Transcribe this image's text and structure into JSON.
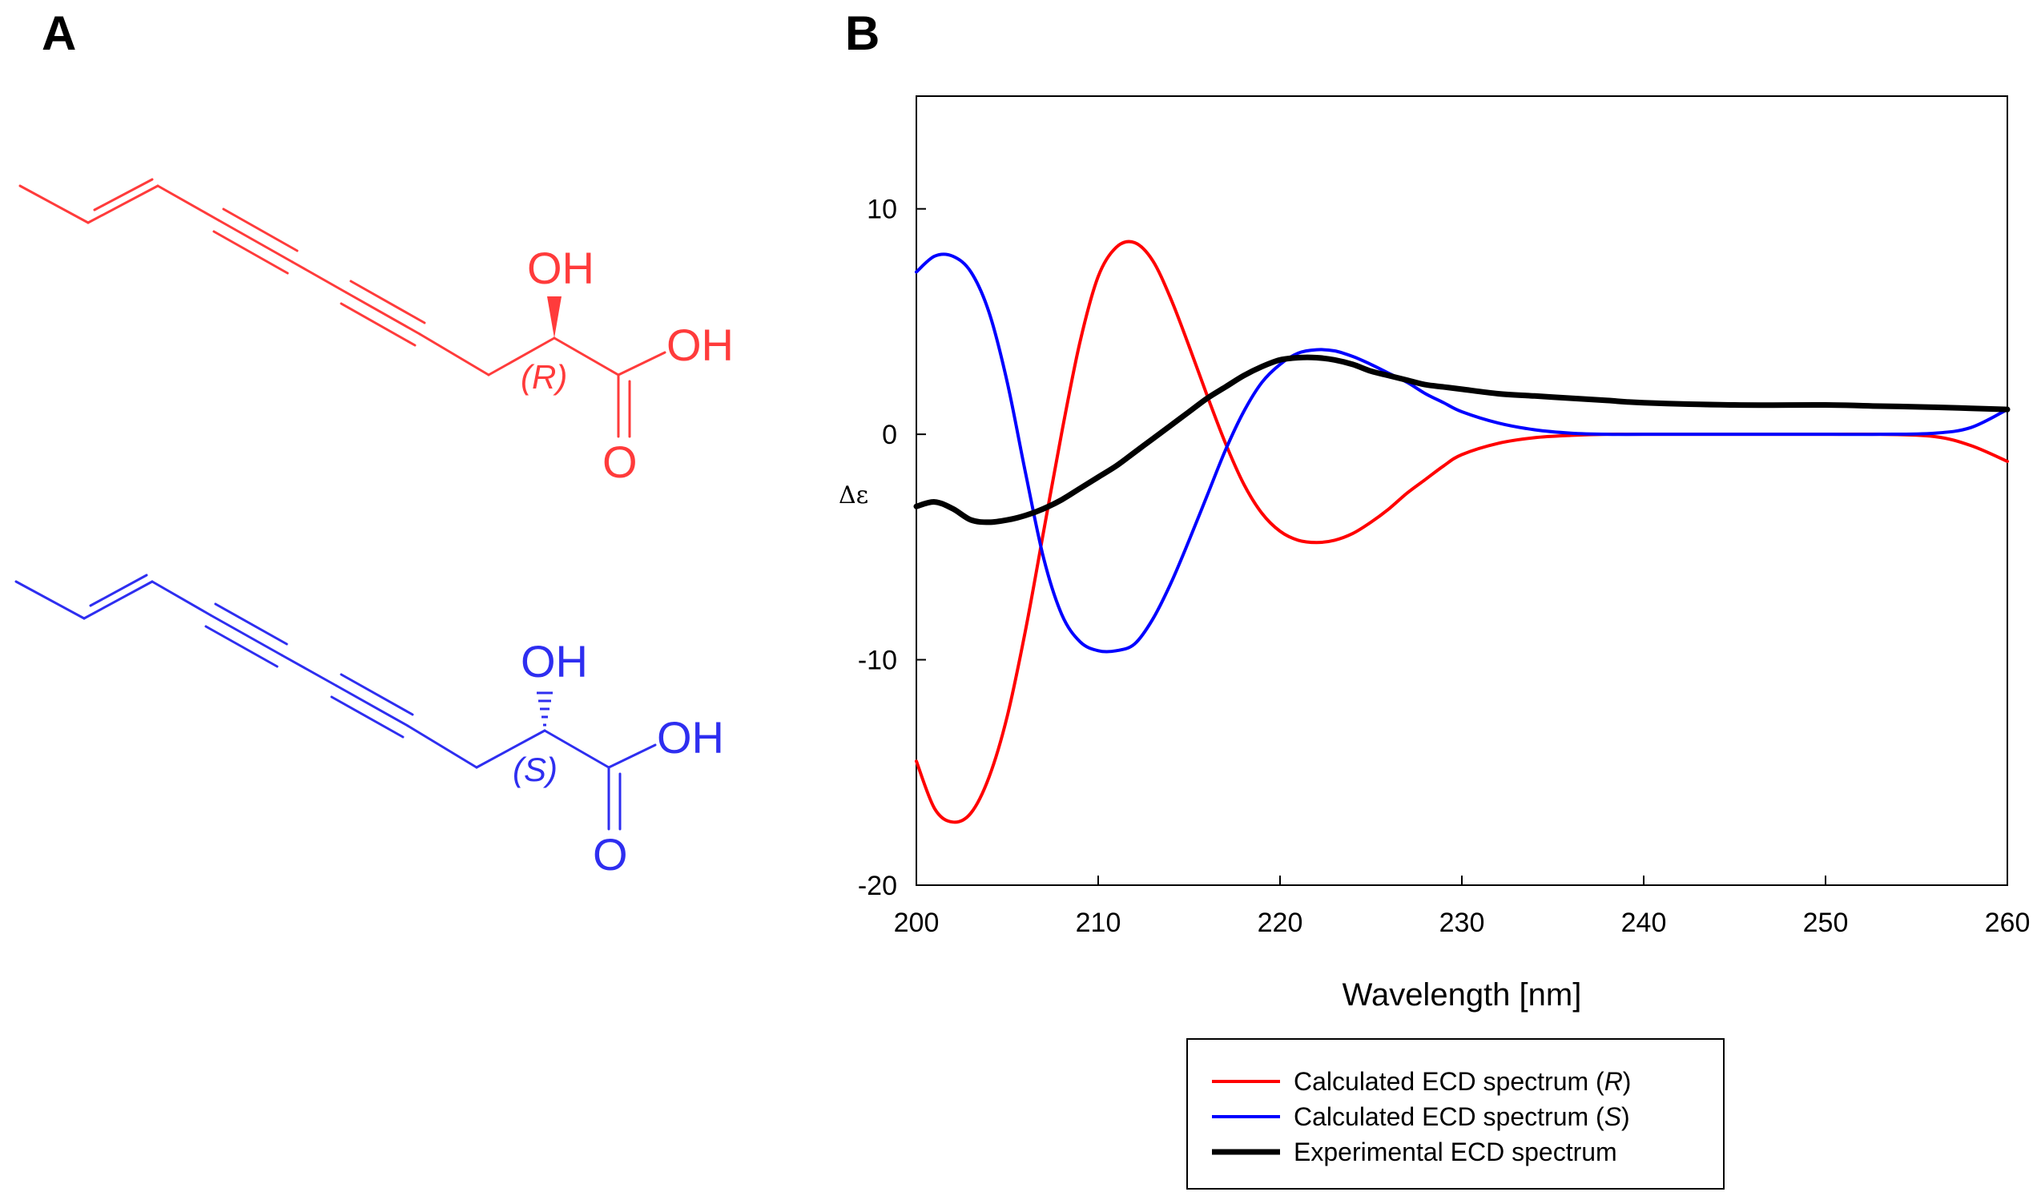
{
  "panels": {
    "a_label": "A",
    "b_label": "B"
  },
  "molecules": {
    "r_isomer": {
      "color": "#ff3b3b",
      "hydroxyl": "OH",
      "acid_oh": "OH",
      "carbonyl_o": "O",
      "stereo_prefix": "(",
      "stereo_letter": "R",
      "stereo_suffix": ")"
    },
    "s_isomer": {
      "color": "#2e2ef0",
      "hydroxyl": "OH",
      "acid_oh": "OH",
      "carbonyl_o": "O",
      "stereo_prefix": "(",
      "stereo_letter": "S",
      "stereo_suffix": ")"
    }
  },
  "chart_data": {
    "type": "line",
    "title": "",
    "xlabel": "Wavelength [nm]",
    "ylabel": "Δε",
    "xlim": [
      200,
      260
    ],
    "ylim": [
      -20,
      15
    ],
    "x_ticks": [
      200,
      210,
      220,
      230,
      240,
      250,
      260
    ],
    "y_ticks": [
      -20,
      -10,
      0,
      10
    ],
    "legend_position": "bottom",
    "series": [
      {
        "name": "Calculated ECD spectrum (R)",
        "label_main": "Calculated ECD spectrum (",
        "label_italic": "R",
        "label_end": ")",
        "color": "#ff0000",
        "width": "normal",
        "x": [
          200,
          201,
          202,
          203,
          204,
          205,
          206,
          207,
          208,
          209,
          210,
          211,
          212,
          213,
          214,
          215,
          216,
          217,
          218,
          219,
          220,
          221,
          222,
          223,
          224,
          225,
          226,
          227,
          228,
          229,
          230,
          232,
          234,
          236,
          238,
          240,
          245,
          250,
          253,
          256,
          258,
          260
        ],
        "y": [
          -14.5,
          -16.6,
          -17.2,
          -16.8,
          -15.2,
          -12.5,
          -8.7,
          -4.3,
          0.1,
          4.1,
          7.0,
          8.3,
          8.5,
          7.7,
          6.0,
          3.9,
          1.7,
          -0.4,
          -2.2,
          -3.5,
          -4.3,
          -4.7,
          -4.8,
          -4.7,
          -4.4,
          -3.9,
          -3.3,
          -2.6,
          -2.0,
          -1.4,
          -0.9,
          -0.4,
          -0.15,
          -0.05,
          0.0,
          0.0,
          0.0,
          0.0,
          0.0,
          -0.1,
          -0.5,
          -1.2
        ]
      },
      {
        "name": "Calculated ECD spectrum (S)",
        "label_main": "Calculated ECD spectrum (",
        "label_italic": "S",
        "label_end": ")",
        "color": "#0000ff",
        "width": "normal",
        "x": [
          200,
          201,
          202,
          203,
          204,
          205,
          206,
          207,
          208,
          209,
          210,
          211,
          212,
          213,
          214,
          215,
          216,
          217,
          218,
          219,
          220,
          221,
          222,
          223,
          224,
          225,
          226,
          227,
          228,
          229,
          230,
          232,
          234,
          236,
          238,
          240,
          245,
          250,
          253,
          256,
          258,
          260
        ],
        "y": [
          7.2,
          7.9,
          7.9,
          7.2,
          5.4,
          2.3,
          -1.7,
          -5.5,
          -8.0,
          -9.2,
          -9.6,
          -9.6,
          -9.3,
          -8.2,
          -6.6,
          -4.7,
          -2.7,
          -0.7,
          1.0,
          2.3,
          3.1,
          3.6,
          3.75,
          3.7,
          3.45,
          3.1,
          2.7,
          2.3,
          1.8,
          1.4,
          1.0,
          0.5,
          0.2,
          0.05,
          0.0,
          0.0,
          0.0,
          0.0,
          0.0,
          0.05,
          0.3,
          1.1
        ]
      },
      {
        "name": "Experimental ECD spectrum",
        "label_main": "Experimental ECD spectrum",
        "label_italic": "",
        "label_end": "",
        "color": "#000000",
        "width": "thick",
        "x": [
          200,
          201,
          202,
          203,
          204,
          205,
          206,
          207,
          208,
          209,
          210,
          211,
          212,
          213,
          214,
          215,
          216,
          217,
          218,
          219,
          220,
          221,
          222,
          223,
          224,
          225,
          226,
          227,
          228,
          229,
          230,
          232,
          234,
          236,
          238,
          240,
          245,
          250,
          253,
          256,
          258,
          260
        ],
        "y": [
          -3.2,
          -3.0,
          -3.3,
          -3.8,
          -3.9,
          -3.8,
          -3.6,
          -3.3,
          -2.9,
          -2.4,
          -1.9,
          -1.4,
          -0.8,
          -0.2,
          0.4,
          1.0,
          1.6,
          2.1,
          2.6,
          3.0,
          3.3,
          3.4,
          3.4,
          3.3,
          3.1,
          2.8,
          2.6,
          2.4,
          2.2,
          2.1,
          2.0,
          1.8,
          1.7,
          1.6,
          1.5,
          1.4,
          1.3,
          1.3,
          1.25,
          1.2,
          1.15,
          1.1
        ]
      }
    ]
  }
}
